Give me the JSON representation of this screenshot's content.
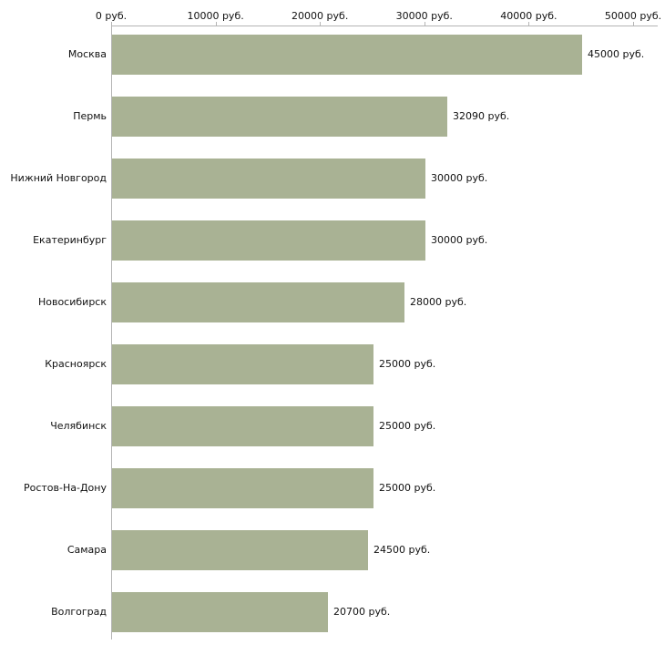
{
  "chart_data": {
    "type": "bar",
    "orientation": "horizontal",
    "title": "",
    "xlabel": "",
    "ylabel": "",
    "xlim": [
      0,
      50000
    ],
    "grid": false,
    "legend": null,
    "categories": [
      "Москва",
      "Пермь",
      "Нижний Новгород",
      "Екатеринбург",
      "Новосибирск",
      "Красноярск",
      "Челябинск",
      "Ростов-На-Дону",
      "Самара",
      "Волгоград"
    ],
    "values": [
      45000,
      32090,
      30000,
      30000,
      28000,
      25000,
      25000,
      25000,
      24500,
      20700
    ],
    "value_labels": [
      "45000 руб.",
      "32090 руб.",
      "30000 руб.",
      "30000 руб.",
      "28000 руб.",
      "25000 руб.",
      "25000 руб.",
      "25000 руб.",
      "24500 руб.",
      "20700 руб."
    ],
    "x_ticks": [
      0,
      10000,
      20000,
      30000,
      40000,
      50000
    ],
    "x_tick_labels": [
      "0 руб.",
      "10000 руб.",
      "20000 руб.",
      "30000 руб.",
      "40000 руб.",
      "50000 руб."
    ],
    "colors": {
      "bar_fill": "#a9b294",
      "axis_line": "#b4b4b4",
      "text": "#111111",
      "background": "#ffffff"
    }
  }
}
